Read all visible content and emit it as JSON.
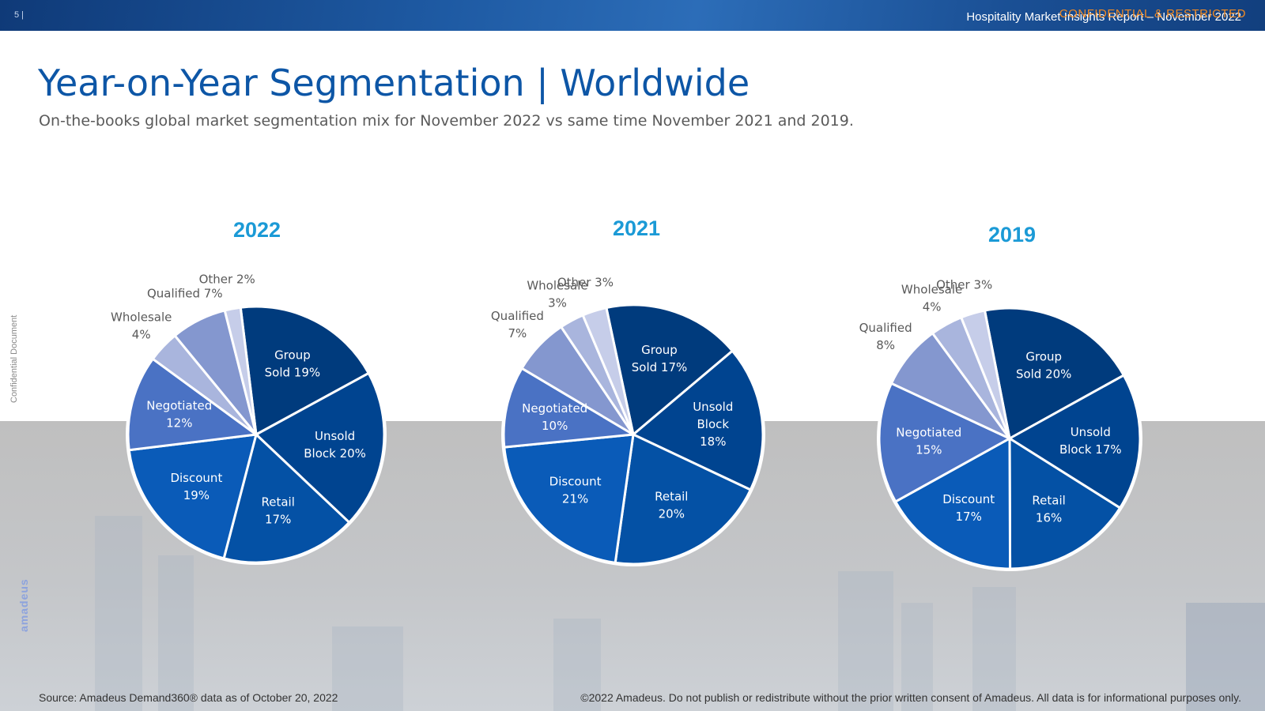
{
  "header": {
    "page_number": "5 |",
    "report_title": "Hospitality Market Insights Report – November 2022",
    "classification": "CONFIDENTIAL & RESTRICTED"
  },
  "title": "Year-on-Year Segmentation | Worldwide",
  "subtitle": "On-the-books global market segmentation mix for November 2022 vs same time November 2021 and 2019.",
  "side": {
    "confidential": "Confidential Document",
    "logo": "amadeus"
  },
  "colors": {
    "group_sold": "#003b7d",
    "unsold_block": "#004490",
    "retail": "#0451a5",
    "discount": "#0a5bb8",
    "negotiated": "#4a72c4",
    "qualified": "#8497cf",
    "wholesale": "#a9b5dd",
    "other": "#c6cde9",
    "year_title": "#1b9ad6"
  },
  "chart_data": [
    {
      "type": "pie",
      "title": "2022",
      "slices": [
        {
          "label": "Group Sold",
          "value": 19,
          "text": [
            "Group",
            "Sold 19%"
          ]
        },
        {
          "label": "Unsold Block",
          "value": 20,
          "text": [
            "Unsold",
            "Block 20%"
          ]
        },
        {
          "label": "Retail",
          "value": 17,
          "text": [
            "Retail",
            "17%"
          ]
        },
        {
          "label": "Discount",
          "value": 19,
          "text": [
            "Discount",
            "19%"
          ]
        },
        {
          "label": "Negotiated",
          "value": 12,
          "text": [
            "Negotiated",
            "12%"
          ]
        },
        {
          "label": "Wholesale",
          "value": 4,
          "text": [
            "Wholesale",
            "4%"
          ]
        },
        {
          "label": "Qualified",
          "value": 7,
          "text": [
            "Qualified 7%"
          ]
        },
        {
          "label": "Other",
          "value": 2,
          "text": [
            "Other 2%"
          ]
        }
      ]
    },
    {
      "type": "pie",
      "title": "2021",
      "slices": [
        {
          "label": "Group Sold",
          "value": 17,
          "text": [
            "Group",
            "Sold 17%"
          ]
        },
        {
          "label": "Unsold Block",
          "value": 18,
          "text": [
            "Unsold",
            "Block",
            "18%"
          ]
        },
        {
          "label": "Retail",
          "value": 20,
          "text": [
            "Retail",
            "20%"
          ]
        },
        {
          "label": "Discount",
          "value": 21,
          "text": [
            "Discount",
            "21%"
          ]
        },
        {
          "label": "Negotiated",
          "value": 10,
          "text": [
            "Negotiated",
            "10%"
          ]
        },
        {
          "label": "Qualified",
          "value": 7,
          "text": [
            "Qualified",
            "7%"
          ]
        },
        {
          "label": "Wholesale",
          "value": 3,
          "text": [
            "Wholesale",
            "3%"
          ]
        },
        {
          "label": "Other",
          "value": 3,
          "text": [
            "Other 3%"
          ]
        }
      ]
    },
    {
      "type": "pie",
      "title": "2019",
      "slices": [
        {
          "label": "Group Sold",
          "value": 20,
          "text": [
            "Group",
            "Sold 20%"
          ]
        },
        {
          "label": "Unsold Block",
          "value": 17,
          "text": [
            "Unsold",
            "Block 17%"
          ]
        },
        {
          "label": "Retail",
          "value": 16,
          "text": [
            "Retail",
            "16%"
          ]
        },
        {
          "label": "Discount",
          "value": 17,
          "text": [
            "Discount",
            "17%"
          ]
        },
        {
          "label": "Negotiated",
          "value": 15,
          "text": [
            "Negotiated",
            "15%"
          ]
        },
        {
          "label": "Qualified",
          "value": 8,
          "text": [
            "Qualified",
            "8%"
          ]
        },
        {
          "label": "Wholesale",
          "value": 4,
          "text": [
            "Wholesale",
            "4%"
          ]
        },
        {
          "label": "Other",
          "value": 3,
          "text": [
            "Other 3%"
          ]
        }
      ]
    }
  ],
  "footer": {
    "source": "Source: Amadeus Demand360® data as of October 20, 2022",
    "copyright": "©2022 Amadeus. Do not publish or redistribute without the prior written consent of Amadeus. All data is for informational purposes only."
  }
}
